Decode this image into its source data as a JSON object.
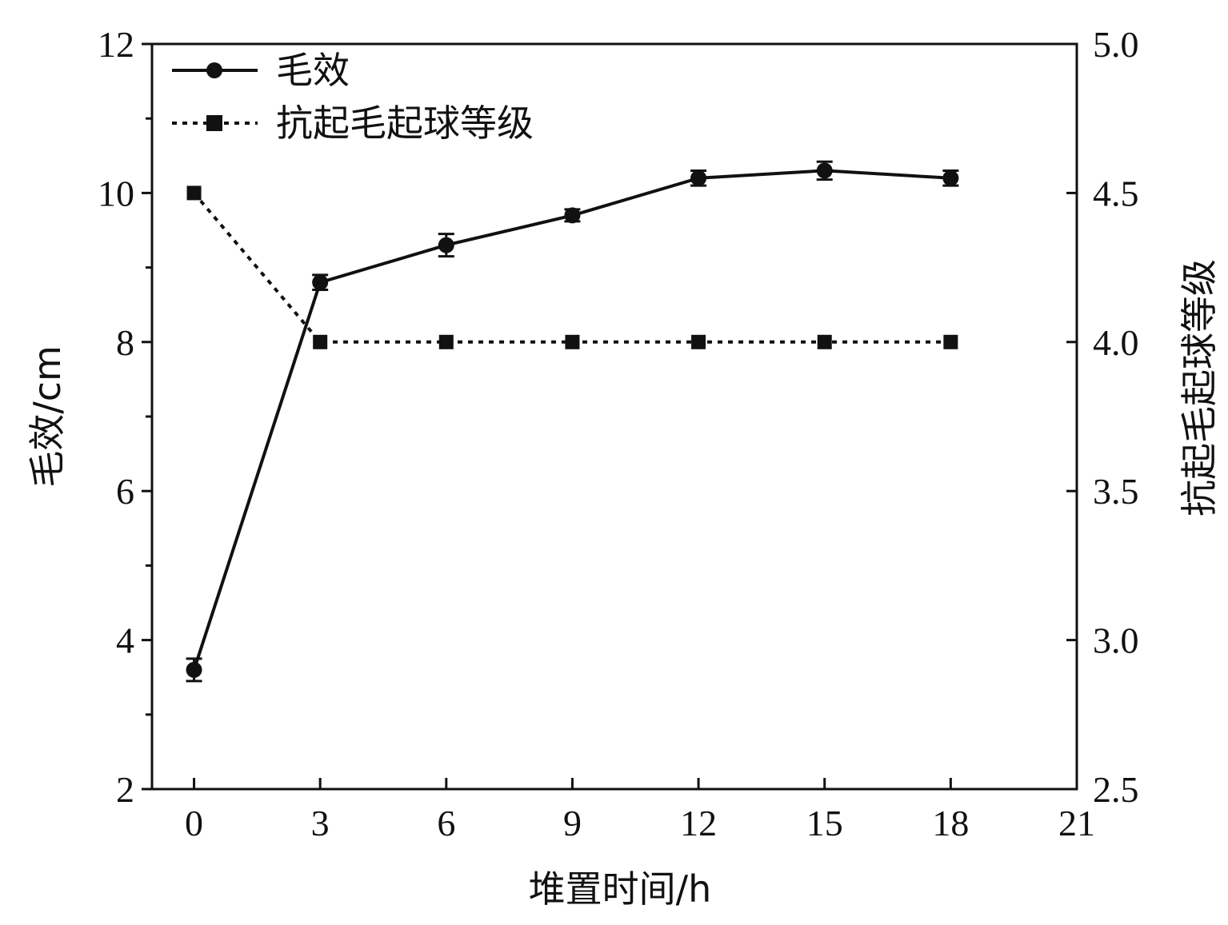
{
  "chart_data": {
    "type": "line",
    "x": [
      0,
      3,
      6,
      9,
      12,
      15,
      18
    ],
    "xlabel": "堆置时间/h",
    "ylabel": "毛效/cm",
    "y2label": "抗起毛起球等级",
    "xlim": [
      -1,
      21
    ],
    "ylim": [
      2,
      12
    ],
    "y2lim": [
      2.5,
      5.0
    ],
    "xticks": [
      "0",
      "3",
      "6",
      "9",
      "12",
      "15",
      "18",
      "21"
    ],
    "yticks": [
      "2",
      "4",
      "6",
      "8",
      "10",
      "12"
    ],
    "y2ticks": [
      "2.5",
      "3.0",
      "3.5",
      "4.0",
      "4.5",
      "5.0"
    ],
    "grid": false,
    "legend_position": "top-left",
    "series": [
      {
        "name": "毛效",
        "axis": "left",
        "style": "solid",
        "marker": "circle",
        "values": [
          3.6,
          8.8,
          9.3,
          9.7,
          10.2,
          10.3,
          10.2
        ],
        "error": [
          0.15,
          0.1,
          0.15,
          0.08,
          0.1,
          0.12,
          0.1
        ]
      },
      {
        "name": "抗起毛起球等级",
        "axis": "right",
        "style": "dotted",
        "marker": "square",
        "values": [
          4.5,
          4.0,
          4.0,
          4.0,
          4.0,
          4.0,
          4.0
        ]
      }
    ],
    "colors": {
      "line": "#111111",
      "axis": "#111111"
    }
  }
}
